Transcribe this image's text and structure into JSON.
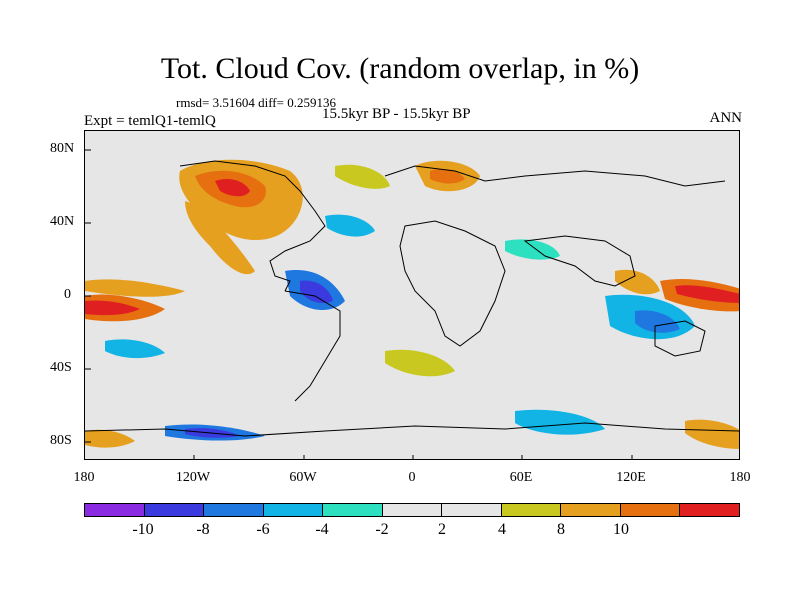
{
  "title": "Tot. Cloud Cov. (random overlap, in %)",
  "stats": "rmsd= 3.51604 diff= 0.259136",
  "experiment": "Expt = temlQ1-temlQ",
  "period": "15.5kyr BP - 15.5kyr BP",
  "season": "ANN",
  "lat_labels": [
    "80N",
    "40N",
    "0",
    "40S",
    "80S"
  ],
  "lon_labels": [
    "180",
    "120W",
    "60W",
    "0",
    "60E",
    "120E",
    "180"
  ],
  "colorbar": {
    "colors": [
      "#8a2be2",
      "#3a3adf",
      "#1f78e0",
      "#12b4e6",
      "#2de0c0",
      "#e6e6e6",
      "#e6e6e6",
      "#c8c820",
      "#e6a020",
      "#e67010",
      "#e02020"
    ],
    "labels": [
      "-10",
      "-8",
      "-6",
      "-4",
      "-2",
      "2",
      "4",
      "8",
      "10"
    ]
  }
}
